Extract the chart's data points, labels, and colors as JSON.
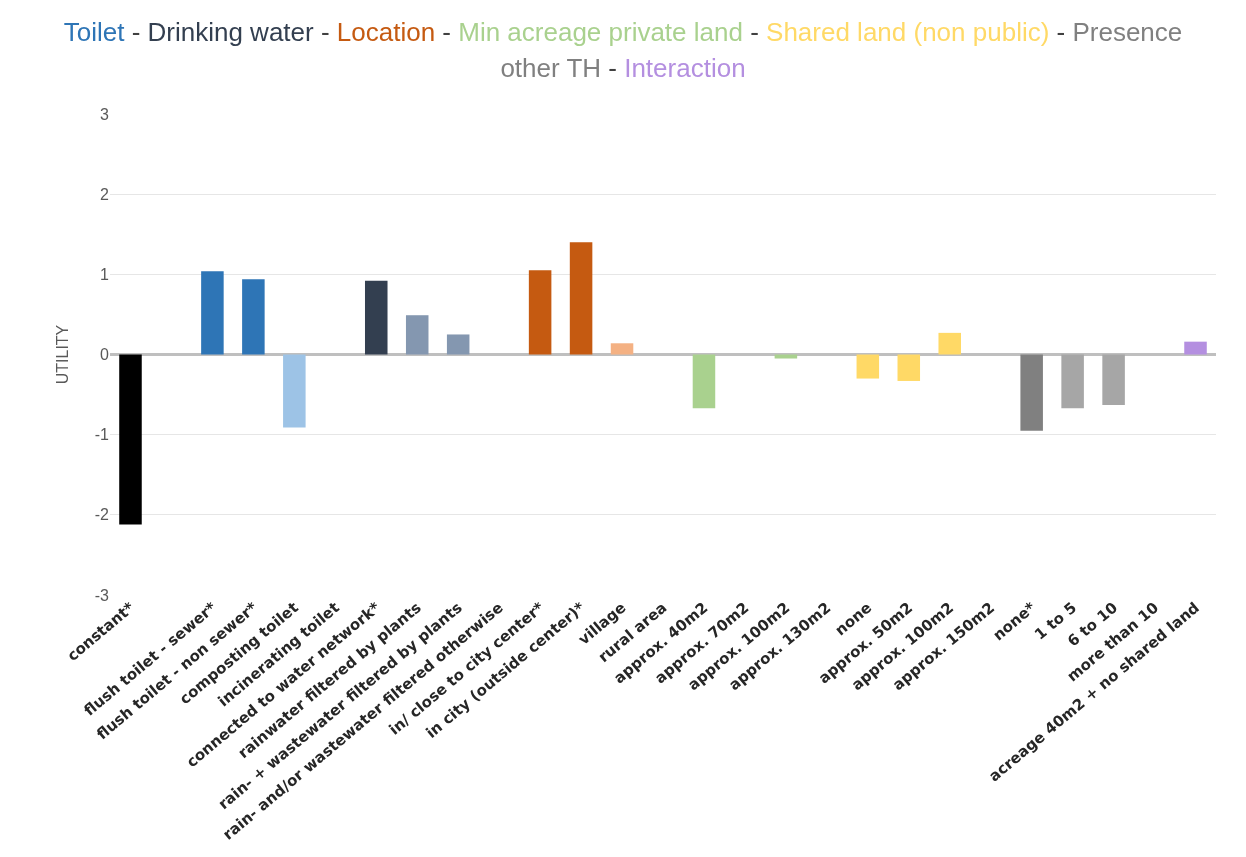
{
  "chart_data": {
    "type": "bar",
    "ylabel": "UTILITY",
    "legend": "top",
    "categories": [
      "constant*",
      null,
      "flush toilet - sewer*",
      "flush toilet - non sewer*",
      "composting toilet",
      "incinerating toilet",
      "connected to water network*",
      "rainwater filtered by plants",
      "rain- + wastewater filtered by plants",
      "rain- and/or wastewater filtered otherwise",
      "in/ close to city center*",
      "in city (outside center)*",
      "village",
      "rural area",
      "approx. 40m2",
      "approx. 70m2",
      "approx. 100m2",
      "approx. 130m2",
      "none",
      "approx. 50m2",
      "approx. 100m2",
      "approx. 150m2",
      "none*",
      "1 to 5",
      "6 to 10",
      "more than 10",
      "acreage 40m2 + no shared land"
    ],
    "series": [
      {
        "color": "#000000",
        "values": [
          -2.12,
          null,
          null,
          null,
          null,
          null,
          null,
          null,
          null,
          null,
          null,
          null,
          null,
          null,
          null,
          null,
          null,
          null,
          null,
          null,
          null,
          null,
          null,
          null,
          null,
          null,
          null
        ]
      },
      {
        "name": "Toilet",
        "color": "#2e75b6",
        "colors": [
          null,
          null,
          "#2e75b6",
          "#2e75b6",
          "#9dc3e6",
          "#9dc3e6",
          null,
          null,
          null,
          null,
          null,
          null,
          null,
          null,
          null,
          null,
          null,
          null,
          null,
          null,
          null,
          null,
          null,
          null,
          null,
          null,
          null
        ],
        "values": [
          null,
          null,
          1.04,
          0.94,
          -0.91,
          0,
          null,
          null,
          null,
          null,
          null,
          null,
          null,
          null,
          null,
          null,
          null,
          null,
          null,
          null,
          null,
          null,
          null,
          null,
          null,
          null,
          null
        ]
      },
      {
        "name": "Drinking water",
        "color": "#333f50",
        "colors": [
          null,
          null,
          null,
          null,
          null,
          null,
          "#333f50",
          "#8497b0",
          "#8497b0",
          "#8497b0",
          null,
          null,
          null,
          null,
          null,
          null,
          null,
          null,
          null,
          null,
          null,
          null,
          null,
          null,
          null,
          null,
          null
        ],
        "values": [
          null,
          null,
          null,
          null,
          null,
          null,
          0.92,
          0.49,
          0.25,
          0,
          null,
          null,
          null,
          null,
          null,
          null,
          null,
          null,
          null,
          null,
          null,
          null,
          null,
          null,
          null,
          null,
          null
        ]
      },
      {
        "name": "Location",
        "color": "#c55a11",
        "colors": [
          null,
          null,
          null,
          null,
          null,
          null,
          null,
          null,
          null,
          null,
          "#c55a11",
          "#c55a11",
          "#f4b183",
          "#f4b183",
          null,
          null,
          null,
          null,
          null,
          null,
          null,
          null,
          null,
          null,
          null,
          null,
          null
        ],
        "values": [
          null,
          null,
          null,
          null,
          null,
          null,
          null,
          null,
          null,
          null,
          1.05,
          1.4,
          0.14,
          0,
          null,
          null,
          null,
          null,
          null,
          null,
          null,
          null,
          null,
          null,
          null,
          null,
          null
        ]
      },
      {
        "name": "Min acreage private land",
        "color": "#a9d18e",
        "colors": [
          null,
          null,
          null,
          null,
          null,
          null,
          null,
          null,
          null,
          null,
          null,
          null,
          null,
          null,
          "#a9d18e",
          "#a9d18e",
          "#a9d18e",
          "#a9d18e",
          null,
          null,
          null,
          null,
          null,
          null,
          null,
          null,
          null
        ],
        "values": [
          null,
          null,
          null,
          null,
          null,
          null,
          null,
          null,
          null,
          null,
          null,
          null,
          null,
          null,
          -0.67,
          0,
          -0.05,
          0,
          null,
          null,
          null,
          null,
          null,
          null,
          null,
          null,
          null
        ]
      },
      {
        "name": "Shared land (non public)",
        "color": "#ffd966",
        "colors": [
          null,
          null,
          null,
          null,
          null,
          null,
          null,
          null,
          null,
          null,
          null,
          null,
          null,
          null,
          null,
          null,
          null,
          null,
          "#ffd966",
          "#ffd966",
          "#ffd966",
          "#ffd966",
          null,
          null,
          null,
          null,
          null
        ],
        "values": [
          null,
          null,
          null,
          null,
          null,
          null,
          null,
          null,
          null,
          null,
          null,
          null,
          null,
          null,
          null,
          null,
          null,
          null,
          -0.3,
          -0.33,
          0.27,
          0,
          null,
          null,
          null,
          null,
          null
        ]
      },
      {
        "name": "Presence other TH",
        "color": "#808080",
        "colors": [
          null,
          null,
          null,
          null,
          null,
          null,
          null,
          null,
          null,
          null,
          null,
          null,
          null,
          null,
          null,
          null,
          null,
          null,
          null,
          null,
          null,
          null,
          "#808080",
          "#a6a6a6",
          "#a6a6a6",
          "#a6a6a6",
          null
        ],
        "values": [
          null,
          null,
          null,
          null,
          null,
          null,
          null,
          null,
          null,
          null,
          null,
          null,
          null,
          null,
          null,
          null,
          null,
          null,
          null,
          null,
          null,
          null,
          -0.95,
          -0.67,
          -0.63,
          0,
          null
        ]
      },
      {
        "name": "Interaction",
        "color": "#b48fe0",
        "colors": [
          null,
          null,
          null,
          null,
          null,
          null,
          null,
          null,
          null,
          null,
          null,
          null,
          null,
          null,
          null,
          null,
          null,
          null,
          null,
          null,
          null,
          null,
          null,
          null,
          null,
          null,
          "#b48fe0"
        ],
        "values": [
          null,
          null,
          null,
          null,
          null,
          null,
          null,
          null,
          null,
          null,
          null,
          null,
          null,
          null,
          null,
          null,
          null,
          null,
          null,
          null,
          null,
          null,
          null,
          null,
          null,
          null,
          0.16
        ]
      }
    ],
    "annotations": [
      "-",
      "-",
      "-",
      "-",
      "-",
      "-"
    ],
    "ylim": [
      -3,
      3
    ],
    "yticks": [
      -3,
      -2,
      -1,
      0,
      1,
      2,
      3
    ],
    "grid": "y"
  }
}
